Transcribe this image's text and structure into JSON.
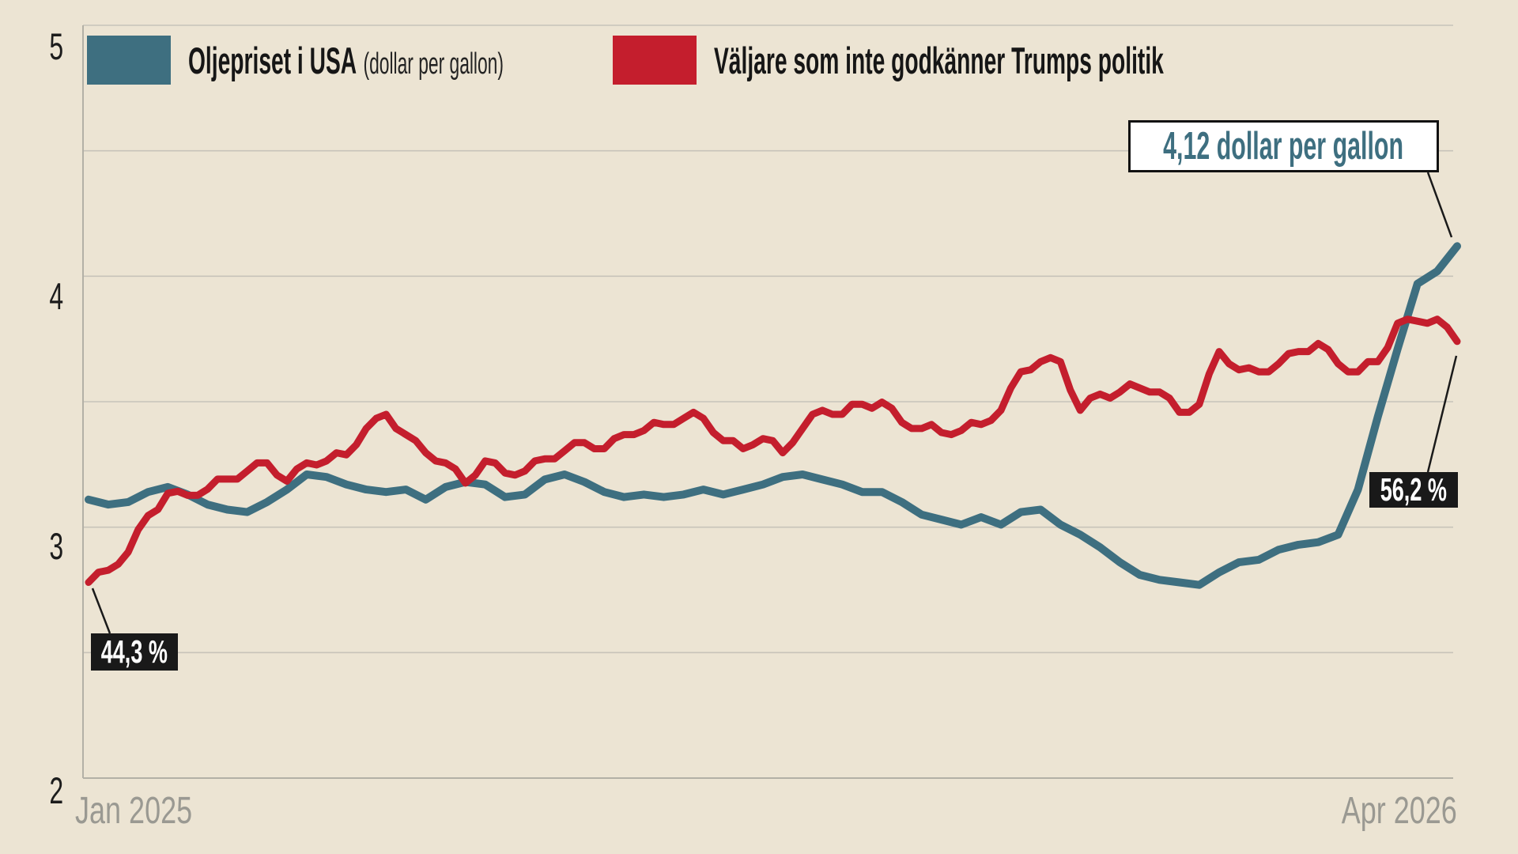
{
  "legend": {
    "oil_label": "Oljepriset i USA",
    "oil_sublabel": "(dollar per gallon)",
    "voters_label": "Väljare som inte godkänner Trumps politik"
  },
  "annotations": {
    "oil_end_label": "4,12 dollar per gallon",
    "voters_start_label": "44,3 %",
    "voters_end_label": "56,2 %"
  },
  "axes": {
    "y_ticks": [
      "5",
      "4",
      "3",
      "2"
    ],
    "x_label_left": "Jan 2025",
    "x_label_right": "Apr 2026"
  },
  "colors": {
    "background": "#ece4d3",
    "oil_line": "#3e6f80",
    "voters_line": "#c41e2d",
    "gridline": "#c7c3b9",
    "axis": "#b3b0a6",
    "axis_text": "#1c1c1c",
    "date_text": "#9a9992",
    "badge_bg": "#191919",
    "badge_text": "#ffffff",
    "callout_text": "#3e6f80",
    "callout_border": "#121212",
    "connector": "#1a1a1a"
  },
  "chart_data": {
    "type": "line",
    "title": "",
    "x_range": [
      "Jan 2025",
      "Apr 2026"
    ],
    "y_axis": {
      "min": 2,
      "max": 5,
      "grid_step": 0.5,
      "tick_labels": [
        5,
        4,
        3,
        2
      ]
    },
    "legend_position": "top",
    "grid": true,
    "series": [
      {
        "name": "Oljepriset i USA (dollar per gallon)",
        "unit": "dollar per gallon",
        "color": "#3e6f80",
        "start_value": 3.11,
        "end_value": 4.12,
        "values": [
          3.11,
          3.09,
          3.1,
          3.14,
          3.16,
          3.13,
          3.09,
          3.07,
          3.06,
          3.1,
          3.15,
          3.21,
          3.2,
          3.17,
          3.15,
          3.14,
          3.15,
          3.11,
          3.16,
          3.18,
          3.17,
          3.12,
          3.13,
          3.19,
          3.21,
          3.18,
          3.14,
          3.12,
          3.13,
          3.12,
          3.13,
          3.15,
          3.13,
          3.15,
          3.17,
          3.2,
          3.21,
          3.19,
          3.17,
          3.14,
          3.14,
          3.1,
          3.05,
          3.03,
          3.01,
          3.04,
          3.01,
          3.06,
          3.07,
          3.01,
          2.97,
          2.92,
          2.86,
          2.81,
          2.79,
          2.78,
          2.77,
          2.82,
          2.86,
          2.87,
          2.91,
          2.93,
          2.94,
          2.97,
          3.15,
          3.44,
          3.71,
          3.97,
          4.02,
          4.12
        ]
      },
      {
        "name": "Väljare som inte godkänner Trumps politik (%)",
        "unit": "percent",
        "color": "#c41e2d",
        "start_value": 44.3,
        "end_value": 56.2,
        "overlay_mapping": {
          "pct": [
            44.3,
            56.2
          ],
          "dollar": [
            2.78,
            3.74
          ]
        },
        "values": [
          44.3,
          44.8,
          44.9,
          45.2,
          45.8,
          46.9,
          47.6,
          47.9,
          48.7,
          48.8,
          48.6,
          48.6,
          48.9,
          49.4,
          49.4,
          49.4,
          49.8,
          50.2,
          50.2,
          49.6,
          49.3,
          49.9,
          50.2,
          50.1,
          50.3,
          50.7,
          50.6,
          51.1,
          51.9,
          52.4,
          52.6,
          51.9,
          51.6,
          51.3,
          50.7,
          50.3,
          50.2,
          49.9,
          49.2,
          49.6,
          50.3,
          50.2,
          49.7,
          49.6,
          49.8,
          50.3,
          50.4,
          50.4,
          50.8,
          51.2,
          51.2,
          50.9,
          50.9,
          51.4,
          51.6,
          51.6,
          51.8,
          52.2,
          52.1,
          52.1,
          52.4,
          52.7,
          52.4,
          51.7,
          51.3,
          51.3,
          50.9,
          51.1,
          51.4,
          51.3,
          50.7,
          51.2,
          51.9,
          52.6,
          52.8,
          52.6,
          52.6,
          53.1,
          53.1,
          52.9,
          53.2,
          52.9,
          52.2,
          51.9,
          51.9,
          52.1,
          51.7,
          51.6,
          51.8,
          52.2,
          52.1,
          52.3,
          52.8,
          53.9,
          54.7,
          54.8,
          55.2,
          55.4,
          55.2,
          53.8,
          52.8,
          53.4,
          53.6,
          53.4,
          53.7,
          54.1,
          53.9,
          53.7,
          53.7,
          53.4,
          52.7,
          52.7,
          53.1,
          54.6,
          55.7,
          55.1,
          54.8,
          54.9,
          54.7,
          54.7,
          55.1,
          55.6,
          55.7,
          55.7,
          56.1,
          55.8,
          55.1,
          54.7,
          54.7,
          55.2,
          55.2,
          55.9,
          57.1,
          57.3,
          57.2,
          57.1,
          57.3,
          56.9,
          56.2
        ]
      }
    ]
  }
}
